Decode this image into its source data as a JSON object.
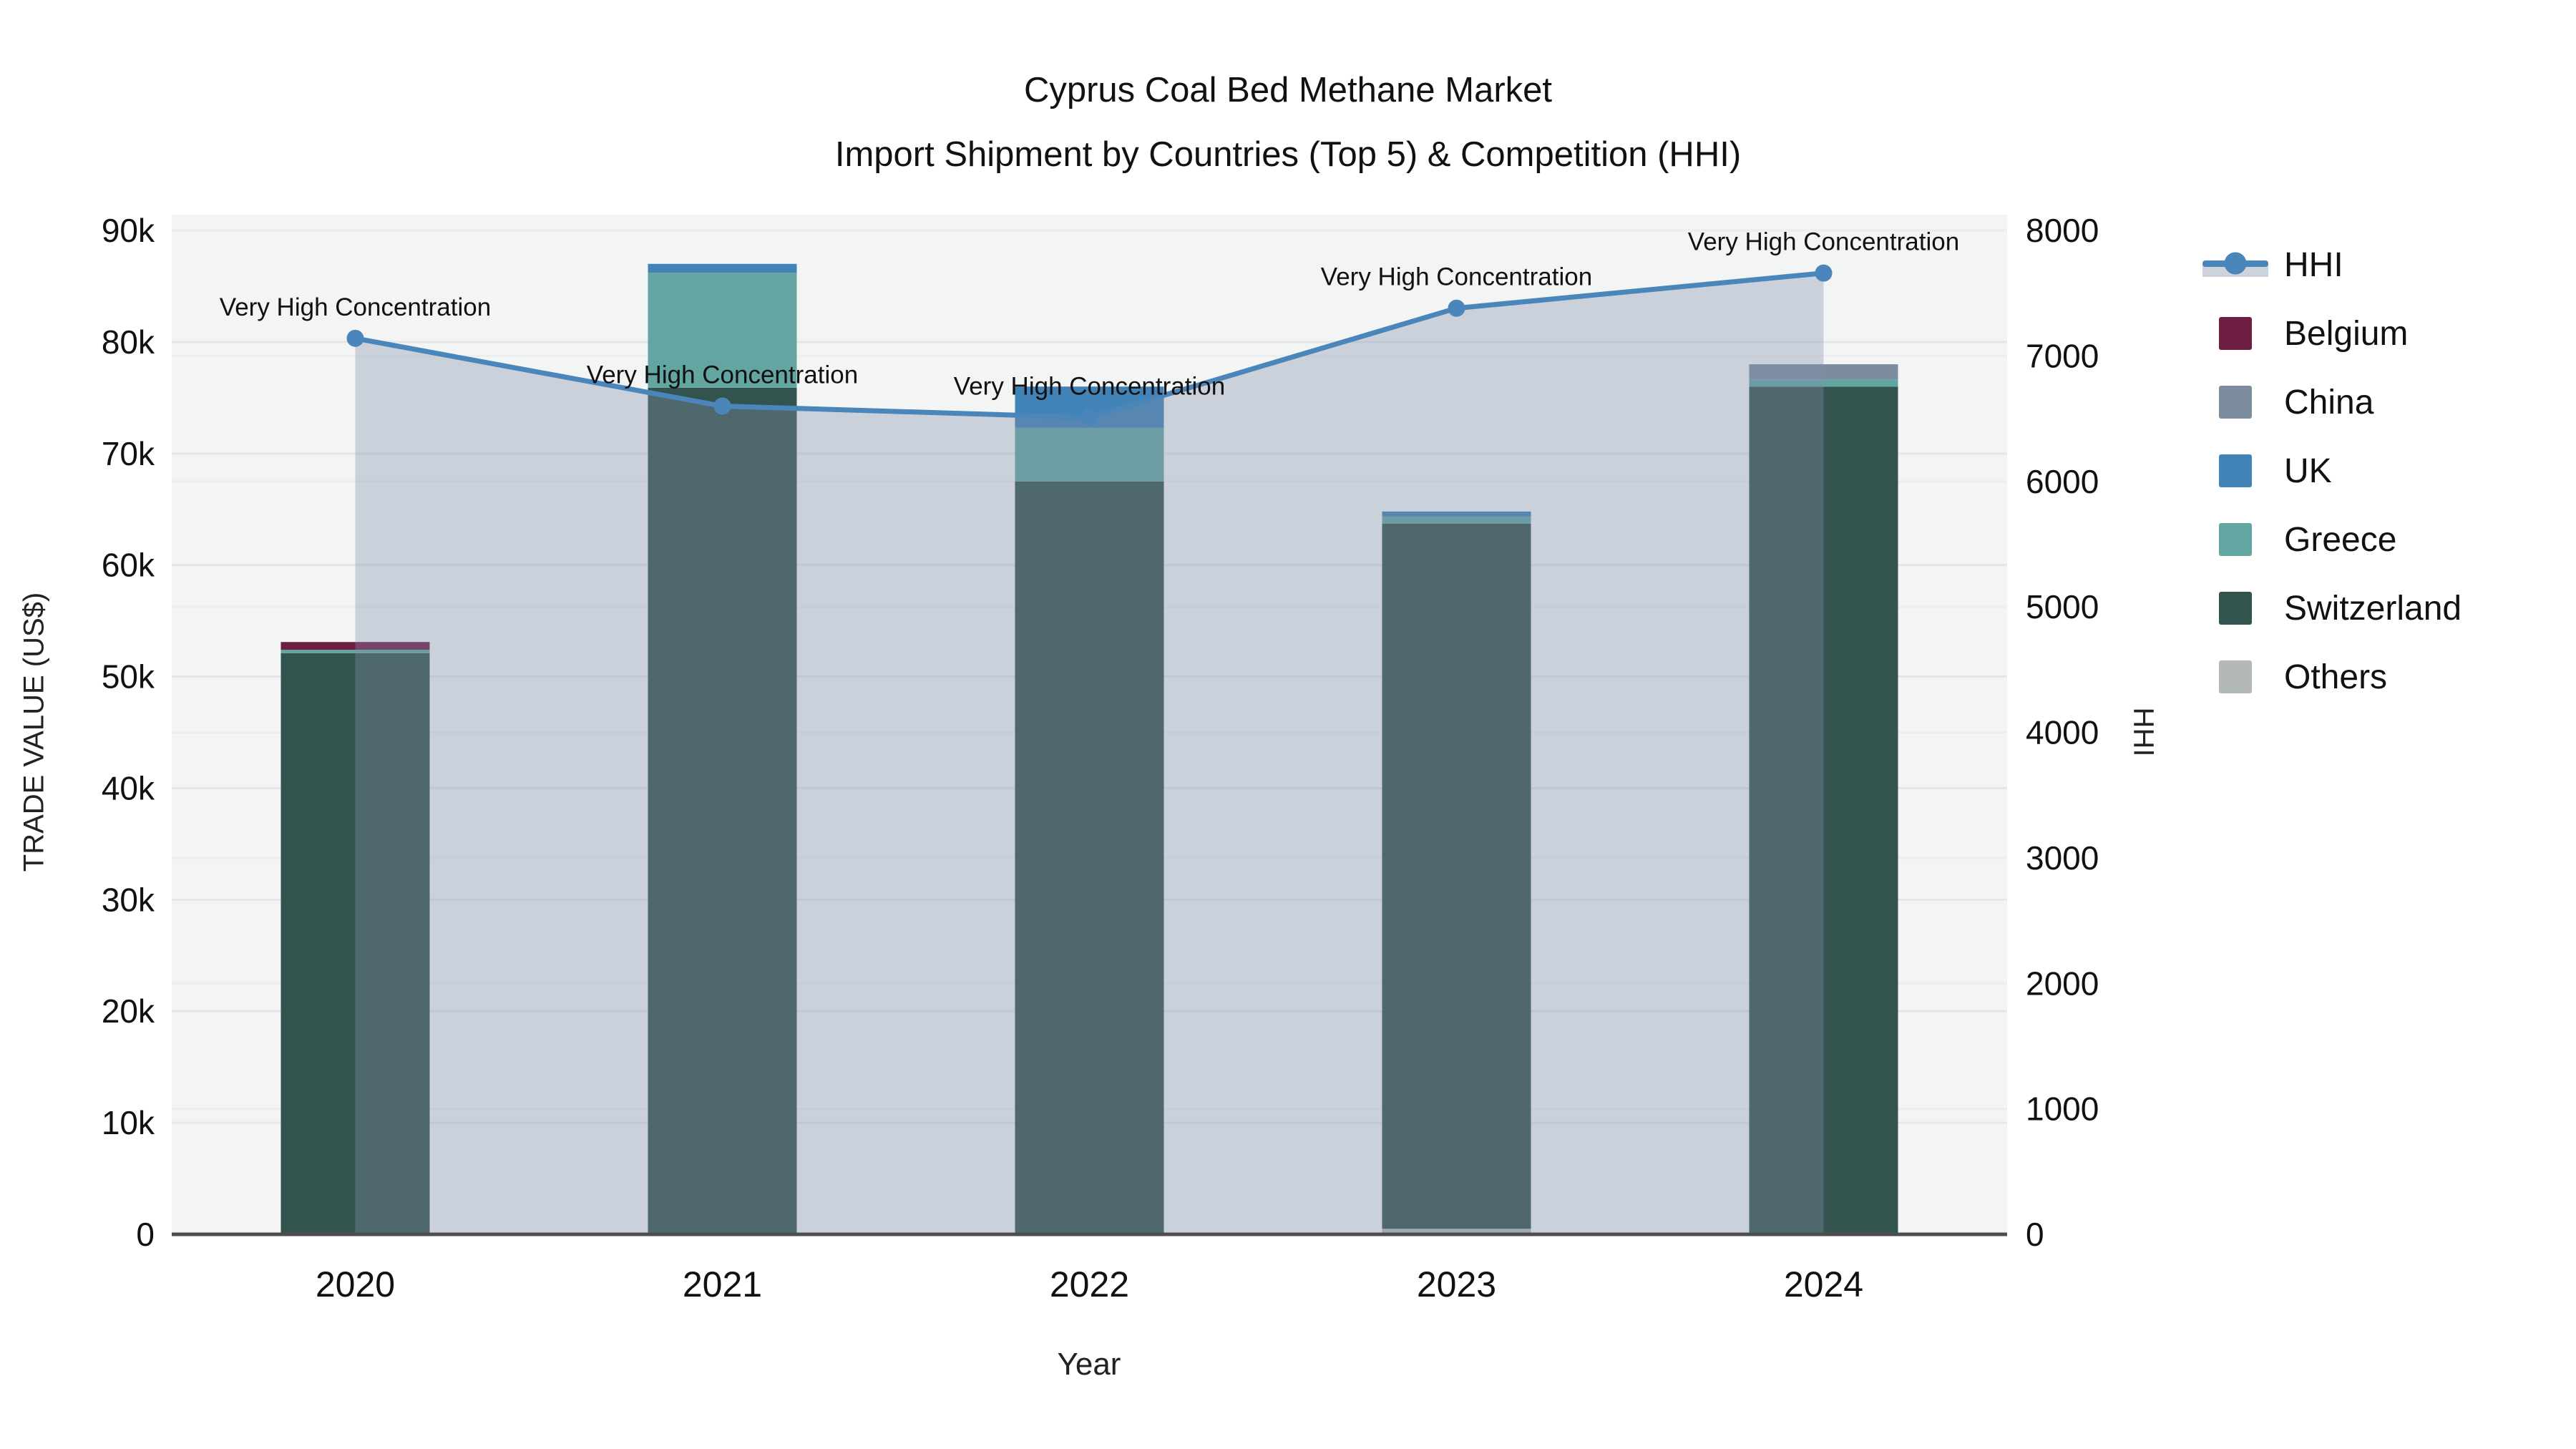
{
  "title": {
    "line1": "Cyprus Coal Bed Methane Market",
    "line2": "Import Shipment by Countries (Top 5) & Competition (HHI)"
  },
  "axes": {
    "x_title": "Year",
    "y_left_title": "TRADE VALUE (US$)",
    "y_right_title": "HHI"
  },
  "legend": {
    "items": [
      {
        "label": "HHI",
        "type": "line",
        "color": "#4a86ba",
        "area_color": "#cdd3dd"
      },
      {
        "label": "Belgium",
        "type": "swatch",
        "color": "#6e1e43"
      },
      {
        "label": "China",
        "type": "swatch",
        "color": "#7d8da0"
      },
      {
        "label": "UK",
        "type": "swatch",
        "color": "#4183b6"
      },
      {
        "label": "Greece",
        "type": "swatch",
        "color": "#63a5a1"
      },
      {
        "label": "Switzerland",
        "type": "swatch",
        "color": "#33544e"
      },
      {
        "label": "Others",
        "type": "swatch",
        "color": "#b3b8b8"
      }
    ]
  },
  "chart_data": {
    "type": "bar",
    "subtype": "stacked-bar-with-line",
    "title": "Cyprus Coal Bed Methane Market Import Shipment by Countries (Top 5) & Competition (HHI)",
    "categories": [
      "2020",
      "2021",
      "2022",
      "2023",
      "2024"
    ],
    "bar_series": [
      {
        "name": "Belgium",
        "color": "#6e1e43",
        "values": [
          700,
          0,
          0,
          0,
          0
        ]
      },
      {
        "name": "China",
        "color": "#7d8da0",
        "values": [
          0,
          0,
          0,
          0,
          1350
        ]
      },
      {
        "name": "UK",
        "color": "#4183b6",
        "values": [
          0,
          800,
          3700,
          450,
          0
        ]
      },
      {
        "name": "Greece",
        "color": "#63a5a1",
        "values": [
          300,
          10300,
          4800,
          650,
          650
        ]
      },
      {
        "name": "Switzerland",
        "color": "#33544e",
        "values": [
          52100,
          75900,
          67500,
          63200,
          76000
        ]
      },
      {
        "name": "Others",
        "color": "#b3b8b8",
        "values": [
          0,
          0,
          0,
          500,
          0
        ]
      }
    ],
    "stack_totals": [
      53100,
      87000,
      76000,
      64800,
      78000
    ],
    "line_series": {
      "name": "HHI",
      "axis": "right",
      "color": "#4a86ba",
      "area_color": "rgba(128,142,168,0.35)",
      "values": [
        7140,
        6600,
        6510,
        7380,
        7660
      ]
    },
    "annotations": [
      "Very High Concentration",
      "Very High Concentration",
      "Very High Concentration",
      "Very High Concentration",
      "Very High Concentration"
    ],
    "xlabel": "Year",
    "y_left": {
      "label": "TRADE VALUE (US$)",
      "range": [
        0,
        90000
      ],
      "tick_values": [
        0,
        10000,
        20000,
        30000,
        40000,
        50000,
        60000,
        70000,
        80000,
        90000
      ],
      "tick_labels": [
        "0",
        "10k",
        "20k",
        "30k",
        "40k",
        "50k",
        "60k",
        "70k",
        "80k",
        "90k"
      ]
    },
    "y_right": {
      "label": "HHI",
      "range": [
        0,
        8000
      ],
      "tick_values": [
        0,
        1000,
        2000,
        3000,
        4000,
        5000,
        6000,
        7000,
        8000
      ],
      "tick_labels": [
        "0",
        "1000",
        "2000",
        "3000",
        "4000",
        "5000",
        "6000",
        "7000",
        "8000"
      ]
    },
    "grid": true,
    "legend_position": "right",
    "plot_background": "#f3f4f4"
  }
}
